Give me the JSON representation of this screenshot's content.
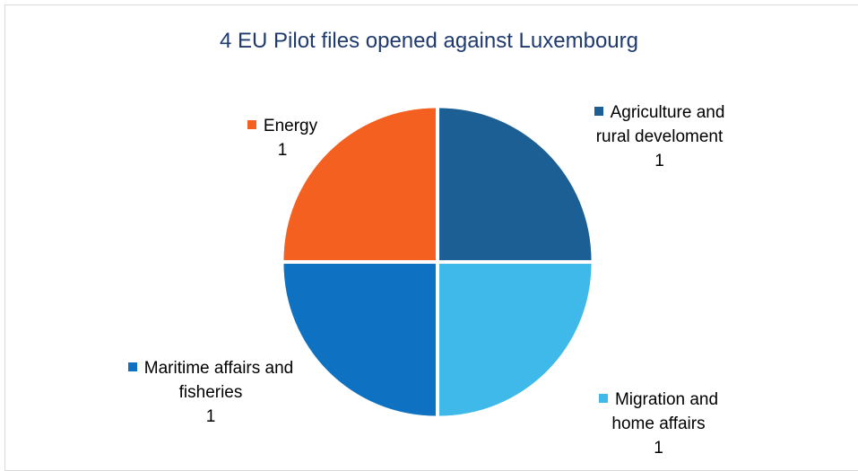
{
  "chart_data": {
    "type": "pie",
    "title": "4 EU Pilot files opened against Luxembourg",
    "categories": [
      "Agriculture and rural develoment",
      "Migration and home affairs",
      "Maritime affairs and fisheries",
      "Energy"
    ],
    "values": [
      1,
      1,
      1,
      1
    ],
    "colors": [
      "#1b5f95",
      "#3fb9e9",
      "#0f71c1",
      "#f4601f"
    ]
  }
}
